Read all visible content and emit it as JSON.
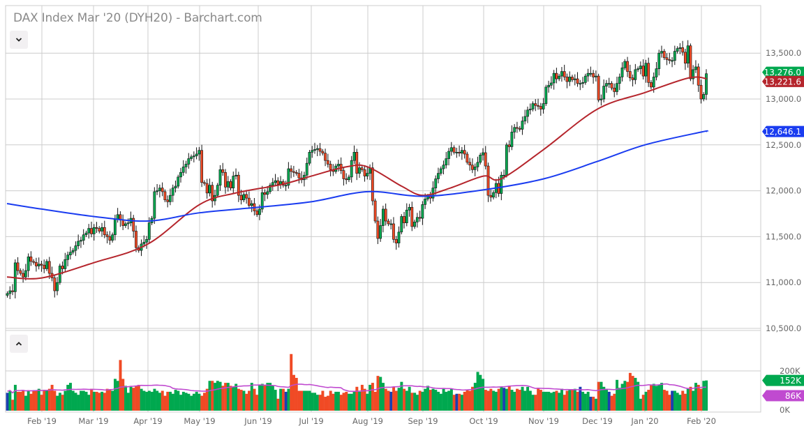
{
  "header": {
    "title": "DAX Index Mar '20 (DYH20) - Barchart.com",
    "collapse_price_icon": "chevron-down-icon",
    "collapse_volume_icon": "chevron-up-icon"
  },
  "colors": {
    "up": "#00a84f",
    "down": "#f04a25",
    "unchanged": "#1c3fb0",
    "ma_50": "#b5252c",
    "ma_200": "#1a3cf0",
    "volume_ma": "#c04ad0",
    "grid": "#cccccc"
  },
  "chart_data": [
    {
      "type": "candlestick",
      "title": "DAX Index Mar '20 (DYH20) - Barchart.com",
      "x_tick_labels": [
        "Feb '19",
        "Mar '19",
        "Apr '19",
        "May '19",
        "Jun '19",
        "Jul '19",
        "Aug '19",
        "Sep '19",
        "Oct '19",
        "Nov '19",
        "Dec '19",
        "Jan '20",
        "Feb '20"
      ],
      "y_ticks": [
        13500,
        13000,
        12500,
        12000,
        11500,
        11000,
        10500
      ],
      "y_tick_labels": [
        "13,500.0",
        "13,000.0",
        "12,500.0",
        "12,000.0",
        "11,500.0",
        "11,000.0",
        "10,500.0"
      ],
      "ylim": [
        10500,
        13700
      ],
      "grid": true,
      "close": [
        10880,
        10910,
        10900,
        11215,
        11130,
        11100,
        11060,
        11130,
        11280,
        11230,
        11220,
        11180,
        11200,
        11190,
        11150,
        11230,
        11100,
        11050,
        10910,
        11000,
        11180,
        11150,
        11250,
        11300,
        11330,
        11350,
        11400,
        11450,
        11460,
        11520,
        11540,
        11590,
        11530,
        11600,
        11590,
        11560,
        11600,
        11520,
        11500,
        11460,
        11520,
        11690,
        11740,
        11680,
        11620,
        11640,
        11650,
        11700,
        11560,
        11380,
        11350,
        11420,
        11440,
        11470,
        11650,
        11700,
        11990,
        12000,
        12030,
        11990,
        11900,
        11880,
        11950,
        12030,
        12050,
        12150,
        12200,
        12260,
        12290,
        12350,
        12370,
        12380,
        12400,
        12440,
        12090,
        12080,
        11975,
        12060,
        11890,
        11950,
        12060,
        12230,
        12200,
        12040,
        12100,
        12030,
        12160,
        12170,
        11950,
        11900,
        11960,
        11920,
        11840,
        11860,
        11780,
        11740,
        11800,
        11980,
        11960,
        11990,
        12060,
        12090,
        12110,
        12070,
        12100,
        12060,
        12060,
        12240,
        12210,
        12200,
        12190,
        12140,
        12120,
        12170,
        12300,
        12420,
        12440,
        12450,
        12460,
        12430,
        12410,
        12330,
        12290,
        12230,
        12210,
        12270,
        12290,
        12220,
        12130,
        12120,
        12150,
        12330,
        12420,
        12190,
        12250,
        12230,
        12160,
        12190,
        12250,
        11890,
        11670,
        11480,
        11620,
        11800,
        11670,
        11640,
        11640,
        11470,
        11430,
        11550,
        11720,
        11650,
        11790,
        11820,
        11610,
        11660,
        11710,
        11700,
        11850,
        11910,
        11940,
        11920,
        12030,
        12130,
        12190,
        12240,
        12280,
        12350,
        12430,
        12470,
        12420,
        12420,
        12410,
        12440,
        12400,
        12310,
        12280,
        12230,
        12260,
        12310,
        12390,
        12415,
        12270,
        11950,
        11930,
        11980,
        12080,
        11970,
        12170,
        12170,
        12500,
        12480,
        12640,
        12690,
        12680,
        12670,
        12760,
        12810,
        12880,
        12890,
        12950,
        12930,
        12920,
        12890,
        12950,
        13130,
        13150,
        13175,
        13280,
        13220,
        13250,
        13300,
        13240,
        13190,
        13240,
        13210,
        13220,
        13170,
        13170,
        13180,
        13250,
        13280,
        13280,
        13240,
        13250,
        12990,
        13000,
        13140,
        13170,
        13170,
        13120,
        13080,
        13170,
        13240,
        13340,
        13410,
        13300,
        13230,
        13210,
        13320,
        13330,
        13360,
        13250,
        13390,
        13180,
        13130,
        13240,
        13330,
        13500,
        13520,
        13450,
        13430,
        13420,
        13420,
        13520,
        13550,
        13560,
        13510,
        13390,
        13580,
        13220,
        13320,
        13350,
        13150,
        13000,
        13050,
        13276
      ],
      "series": [
        {
          "name": "50-day MA",
          "color": "#b5252c",
          "last_label": "13,221.6",
          "points": [
            [
              "2019-01-17",
              11060
            ],
            [
              "2019-02-01",
              11050
            ],
            [
              "2019-03-01",
              11215
            ],
            [
              "2019-04-01",
              11420
            ],
            [
              "2019-05-01",
              11850
            ],
            [
              "2019-05-20",
              11975
            ],
            [
              "2019-06-15",
              12070
            ],
            [
              "2019-07-01",
              12160
            ],
            [
              "2019-07-20",
              12260
            ],
            [
              "2019-08-01",
              12260
            ],
            [
              "2019-08-20",
              12050
            ],
            [
              "2019-09-01",
              11950
            ],
            [
              "2019-09-15",
              12030
            ],
            [
              "2019-10-01",
              12160
            ],
            [
              "2019-10-10",
              12130
            ],
            [
              "2019-11-01",
              12450
            ],
            [
              "2019-12-01",
              12890
            ],
            [
              "2020-01-01",
              13070
            ],
            [
              "2020-01-25",
              13230
            ],
            [
              "2020-02-04",
              13221.6
            ]
          ]
        },
        {
          "name": "200-day MA",
          "color": "#1a3cf0",
          "last_label": "12,646.1",
          "points": [
            [
              "2019-01-17",
              11860
            ],
            [
              "2019-02-01",
              11800
            ],
            [
              "2019-03-01",
              11720
            ],
            [
              "2019-04-01",
              11670
            ],
            [
              "2019-05-01",
              11760
            ],
            [
              "2019-06-01",
              11820
            ],
            [
              "2019-07-01",
              11880
            ],
            [
              "2019-08-01",
              11990
            ],
            [
              "2019-09-01",
              11940
            ],
            [
              "2019-10-01",
              12010
            ],
            [
              "2019-11-01",
              12130
            ],
            [
              "2019-12-01",
              12320
            ],
            [
              "2020-01-01",
              12500
            ],
            [
              "2020-02-01",
              12640
            ],
            [
              "2020-02-04",
              12646.1
            ]
          ]
        }
      ],
      "last_price_label": "13,276.0"
    },
    {
      "type": "bar",
      "panel": "volume",
      "y_ticks": [
        200,
        0
      ],
      "y_tick_labels": [
        "200K",
        "0K"
      ],
      "ylim": [
        0,
        290
      ],
      "volume_k": [
        90,
        100,
        55,
        130,
        95,
        95,
        100,
        75,
        100,
        85,
        100,
        100,
        110,
        80,
        105,
        100,
        110,
        130,
        100,
        75,
        90,
        80,
        100,
        130,
        140,
        100,
        90,
        80,
        100,
        100,
        95,
        80,
        110,
        95,
        95,
        90,
        95,
        90,
        110,
        105,
        100,
        160,
        150,
        255,
        160,
        125,
        90,
        120,
        115,
        125,
        130,
        110,
        100,
        95,
        100,
        95,
        110,
        100,
        90,
        100,
        75,
        95,
        95,
        85,
        105,
        100,
        80,
        95,
        90,
        85,
        75,
        85,
        95,
        85,
        75,
        90,
        110,
        150,
        150,
        140,
        150,
        145,
        125,
        140,
        140,
        125,
        120,
        135,
        110,
        105,
        100,
        85,
        100,
        140,
        110,
        80,
        130,
        135,
        130,
        140,
        140,
        125,
        105,
        60,
        110,
        110,
        95,
        110,
        285,
        180,
        165,
        100,
        100,
        100,
        100,
        100,
        90,
        90,
        80,
        80,
        100,
        70,
        75,
        100,
        85,
        95,
        95,
        80,
        90,
        95,
        85,
        85,
        100,
        120,
        95,
        130,
        110,
        85,
        130,
        140,
        95,
        175,
        170,
        140,
        110,
        100,
        95,
        120,
        100,
        115,
        145,
        110,
        100,
        120,
        90,
        90,
        80,
        100,
        95,
        110,
        125,
        105,
        110,
        105,
        95,
        85,
        110,
        95,
        100,
        110,
        80,
        85,
        85,
        80,
        95,
        105,
        100,
        120,
        140,
        195,
        180,
        160,
        105,
        100,
        110,
        100,
        95,
        110,
        120,
        115,
        110,
        125,
        105,
        95,
        110,
        105,
        120,
        100,
        120,
        100,
        80,
        80,
        115,
        105,
        95,
        95,
        95,
        90,
        95,
        100,
        90,
        110,
        80,
        100,
        105,
        105,
        110,
        95,
        120,
        95,
        85,
        95,
        70,
        70,
        60,
        145,
        145,
        120,
        110,
        95,
        75,
        85,
        155,
        115,
        135,
        150,
        145,
        190,
        175,
        165,
        145,
        60,
        80,
        95,
        105,
        130,
        135,
        125,
        130,
        140,
        105,
        100,
        80,
        100,
        100,
        90,
        80,
        100,
        85,
        110,
        120,
        100,
        140,
        130,
        110,
        150,
        152
      ],
      "last_volume_label": "152K",
      "volume_ma_label": "86K"
    }
  ]
}
